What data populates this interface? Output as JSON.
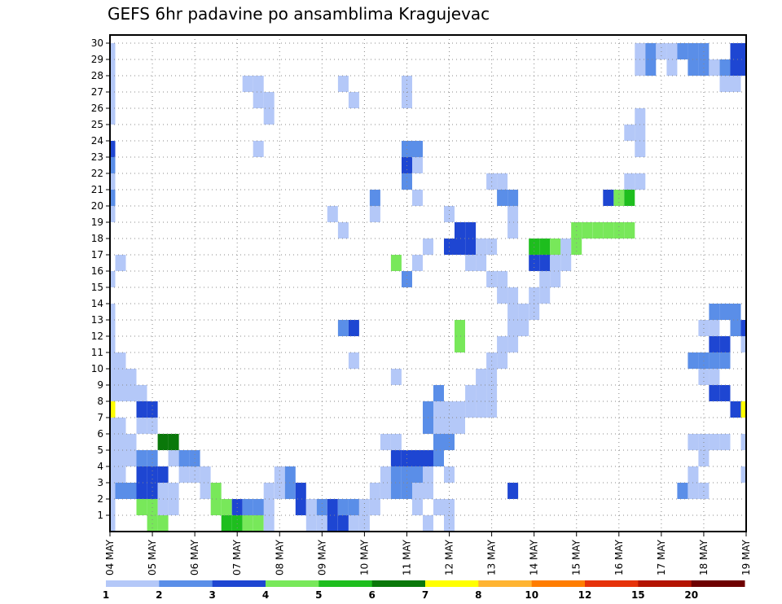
{
  "chart_data": {
    "type": "heatmap",
    "title": "GEFS 6hr padavine po ansamblima Kragujevac",
    "xlabel": "",
    "ylabel": "",
    "x_tick_labels": [
      "04 MAY",
      "05 MAY",
      "06 MAY",
      "07 MAY",
      "08 MAY",
      "09 MAY",
      "10 MAY",
      "11 MAY",
      "12 MAY",
      "13 MAY",
      "14 MAY",
      "15 MAY",
      "16 MAY",
      "17 MAY",
      "18 MAY",
      "19 MAY"
    ],
    "y_tick_labels": [
      "1",
      "2",
      "3",
      "4",
      "5",
      "6",
      "7",
      "8",
      "9",
      "10",
      "11",
      "12",
      "13",
      "14",
      "15",
      "16",
      "17",
      "18",
      "19",
      "20",
      "21",
      "22",
      "23",
      "24",
      "25",
      "26",
      "27",
      "28",
      "29",
      "30"
    ],
    "ylim": [
      0,
      30
    ],
    "time_steps_per_day": 4,
    "grid": true,
    "colorbar": {
      "labels": [
        "1",
        "2",
        "3",
        "4",
        "5",
        "6",
        "7",
        "8",
        "10",
        "12",
        "15",
        "20"
      ],
      "colors": [
        "#b4c8f8",
        "#5a8ee8",
        "#1e46d2",
        "#78e85a",
        "#1ebe1e",
        "#0a780a",
        "#ffff00",
        "#ffb432",
        "#ff7d00",
        "#e6320a",
        "#b41400",
        "#6e0000"
      ]
    },
    "cells": [
      [
        0,
        0,
        1
      ],
      [
        0,
        27,
        1
      ],
      [
        0,
        28,
        1
      ],
      [
        0,
        26,
        1
      ],
      [
        0,
        28,
        2
      ],
      [
        0,
        23,
        3
      ],
      [
        0,
        22,
        2
      ],
      [
        0,
        21,
        1
      ],
      [
        0,
        20,
        2
      ],
      [
        0,
        19,
        1
      ],
      [
        0,
        15,
        1
      ],
      [
        0,
        12,
        1
      ],
      [
        0,
        13,
        1
      ],
      [
        0,
        9,
        1
      ],
      [
        0,
        7,
        1
      ],
      [
        0,
        6,
        1
      ],
      [
        0,
        5,
        2
      ],
      [
        0,
        4,
        1
      ],
      [
        0,
        3,
        1
      ],
      [
        0,
        2,
        1
      ],
      [
        0,
        1,
        1
      ],
      [
        0,
        8,
        1
      ],
      [
        0,
        25,
        1
      ],
      [
        1,
        16,
        1
      ],
      [
        1,
        5,
        2
      ],
      [
        1,
        4,
        1
      ],
      [
        1,
        6,
        1
      ],
      [
        2,
        4,
        1
      ],
      [
        13,
        27,
        1
      ],
      [
        14,
        26,
        1
      ],
      [
        14,
        27,
        1
      ],
      [
        14,
        23,
        1
      ],
      [
        14,
        1,
        1
      ],
      [
        15,
        1,
        1
      ],
      [
        15,
        25,
        1
      ],
      [
        15,
        26,
        1
      ],
      [
        22,
        27,
        1
      ],
      [
        23,
        26,
        1
      ],
      [
        25,
        19,
        1
      ],
      [
        25,
        20,
        2
      ],
      [
        21,
        19,
        1
      ],
      [
        22,
        18,
        1
      ],
      [
        22,
        12,
        2
      ],
      [
        23,
        12,
        3
      ],
      [
        23,
        10,
        1
      ],
      [
        27,
        16,
        4
      ],
      [
        28,
        15,
        2
      ],
      [
        27,
        5,
        1
      ],
      [
        26,
        5,
        1
      ],
      [
        27,
        9,
        1
      ],
      [
        28,
        22,
        2
      ],
      [
        29,
        22,
        1
      ],
      [
        28,
        23,
        2
      ],
      [
        28,
        22,
        3
      ],
      [
        28,
        21,
        2
      ],
      [
        28,
        26,
        1
      ],
      [
        28,
        27,
        1
      ],
      [
        29,
        20,
        1
      ],
      [
        29,
        23,
        2
      ],
      [
        29,
        16,
        1
      ],
      [
        29,
        2,
        1
      ],
      [
        29,
        1,
        1
      ],
      [
        30,
        2,
        1
      ],
      [
        30,
        0,
        1
      ],
      [
        31,
        1,
        1
      ],
      [
        31,
        4,
        1
      ],
      [
        30,
        3,
        1
      ],
      [
        32,
        3,
        1
      ],
      [
        32,
        1,
        1
      ],
      [
        32,
        0,
        1
      ],
      [
        30,
        17,
        1
      ],
      [
        32,
        19,
        1
      ],
      [
        32,
        17,
        3
      ],
      [
        33,
        17,
        3
      ],
      [
        33,
        18,
        3
      ],
      [
        34,
        18,
        3
      ],
      [
        34,
        17,
        3
      ],
      [
        35,
        17,
        1
      ],
      [
        36,
        17,
        1
      ],
      [
        34,
        16,
        1
      ],
      [
        35,
        16,
        1
      ],
      [
        31,
        8,
        2
      ],
      [
        31,
        7,
        1
      ],
      [
        32,
        7,
        1
      ],
      [
        31,
        6,
        1
      ],
      [
        31,
        5,
        1
      ],
      [
        30,
        7,
        2
      ],
      [
        30,
        6,
        2
      ],
      [
        33,
        11,
        4
      ],
      [
        33,
        12,
        4
      ],
      [
        35,
        7,
        1
      ],
      [
        36,
        7,
        1
      ],
      [
        36,
        8,
        1
      ],
      [
        36,
        15,
        1
      ],
      [
        37,
        15,
        1
      ],
      [
        37,
        14,
        1
      ],
      [
        38,
        14,
        1
      ],
      [
        38,
        13,
        1
      ],
      [
        38,
        12,
        1
      ],
      [
        39,
        12,
        1
      ],
      [
        37,
        20,
        2
      ],
      [
        38,
        20,
        2
      ],
      [
        37,
        21,
        1
      ],
      [
        36,
        21,
        1
      ],
      [
        38,
        19,
        1
      ],
      [
        38,
        18,
        1
      ],
      [
        41,
        17,
        5
      ],
      [
        42,
        17,
        4
      ],
      [
        43,
        17,
        4
      ],
      [
        44,
        17,
        4
      ],
      [
        44,
        18,
        4
      ],
      [
        45,
        18,
        4
      ],
      [
        46,
        18,
        4
      ],
      [
        47,
        18,
        4
      ],
      [
        48,
        18,
        4
      ],
      [
        49,
        18,
        4
      ],
      [
        40,
        16,
        3
      ],
      [
        41,
        16,
        3
      ],
      [
        40,
        17,
        5
      ],
      [
        38,
        2,
        3
      ],
      [
        48,
        20,
        4
      ],
      [
        49,
        20,
        5
      ],
      [
        47,
        20,
        3
      ],
      [
        49,
        21,
        1
      ],
      [
        50,
        21,
        1
      ],
      [
        50,
        24,
        1
      ],
      [
        50,
        23,
        1
      ],
      [
        49,
        24,
        1
      ],
      [
        50,
        25,
        1
      ],
      [
        50,
        29,
        1
      ],
      [
        50,
        28,
        1
      ],
      [
        51,
        28,
        2
      ],
      [
        51,
        29,
        2
      ],
      [
        52,
        29,
        1
      ],
      [
        53,
        29,
        1
      ],
      [
        53,
        28,
        1
      ],
      [
        54,
        29,
        2
      ],
      [
        55,
        29,
        2
      ],
      [
        55,
        28,
        2
      ],
      [
        56,
        29,
        2
      ],
      [
        56,
        28,
        2
      ],
      [
        57,
        28,
        1
      ],
      [
        58,
        28,
        2
      ],
      [
        58,
        27,
        1
      ],
      [
        59,
        27,
        1
      ],
      [
        59,
        28,
        3
      ],
      [
        59,
        29,
        3
      ],
      [
        60,
        29,
        3
      ],
      [
        60,
        28,
        3
      ],
      [
        61,
        29,
        1
      ],
      [
        61,
        28,
        1
      ],
      [
        55,
        2,
        1
      ],
      [
        56,
        2,
        1
      ],
      [
        54,
        2,
        2
      ],
      [
        55,
        3,
        1
      ],
      [
        55,
        5,
        1
      ],
      [
        56,
        5,
        1
      ],
      [
        57,
        5,
        1
      ],
      [
        58,
        5,
        1
      ],
      [
        56,
        4,
        1
      ],
      [
        55,
        10,
        2
      ],
      [
        56,
        10,
        2
      ],
      [
        57,
        10,
        2
      ],
      [
        58,
        10,
        2
      ],
      [
        56,
        9,
        1
      ],
      [
        57,
        9,
        1
      ],
      [
        57,
        8,
        3
      ],
      [
        58,
        8,
        3
      ],
      [
        57,
        11,
        3
      ],
      [
        58,
        11,
        3
      ],
      [
        56,
        12,
        1
      ],
      [
        57,
        12,
        1
      ],
      [
        57,
        13,
        2
      ],
      [
        58,
        13,
        2
      ],
      [
        59,
        13,
        2
      ],
      [
        59,
        12,
        2
      ],
      [
        60,
        12,
        3
      ],
      [
        60,
        11,
        1
      ],
      [
        61,
        11,
        1
      ],
      [
        61,
        10,
        1
      ],
      [
        62,
        10,
        1
      ],
      [
        62,
        9,
        1
      ],
      [
        62,
        8,
        1
      ],
      [
        63,
        9,
        1
      ],
      [
        63,
        8,
        1
      ],
      [
        64,
        8,
        1
      ],
      [
        64,
        7,
        3
      ],
      [
        65,
        7,
        3
      ],
      [
        64,
        6,
        1
      ],
      [
        65,
        6,
        1
      ],
      [
        59,
        7,
        3
      ],
      [
        60,
        7,
        7
      ],
      [
        61,
        7,
        7
      ],
      [
        61,
        6,
        1
      ],
      [
        62,
        6,
        1
      ],
      [
        62,
        5,
        1
      ],
      [
        63,
        5,
        1
      ],
      [
        61,
        5,
        1
      ],
      [
        60,
        5,
        1
      ],
      [
        60,
        3,
        1
      ],
      [
        61,
        3,
        1
      ],
      [
        62,
        3,
        1
      ],
      [
        62,
        4,
        1
      ],
      [
        63,
        4,
        1
      ],
      [
        64,
        4,
        2
      ],
      [
        65,
        4,
        2
      ],
      [
        64,
        3,
        3
      ],
      [
        65,
        3,
        3
      ],
      [
        66,
        3,
        3
      ],
      [
        65,
        2,
        3
      ],
      [
        64,
        2,
        3
      ],
      [
        66,
        2,
        1
      ],
      [
        67,
        2,
        1
      ],
      [
        63,
        2,
        2
      ],
      [
        62,
        2,
        2
      ],
      [
        64,
        1,
        4
      ],
      [
        65,
        1,
        4
      ],
      [
        65,
        0,
        4
      ],
      [
        66,
        0,
        4
      ],
      [
        66,
        1,
        1
      ],
      [
        67,
        1,
        1
      ],
      [
        66,
        5,
        6
      ],
      [
        67,
        5,
        6
      ],
      [
        67,
        4,
        1
      ],
      [
        68,
        4,
        2
      ],
      [
        69,
        4,
        2
      ],
      [
        68,
        3,
        1
      ],
      [
        69,
        3,
        1
      ],
      [
        70,
        3,
        1
      ],
      [
        70,
        2,
        1
      ],
      [
        71,
        2,
        4
      ],
      [
        71,
        1,
        4
      ],
      [
        72,
        1,
        4
      ],
      [
        73,
        1,
        3
      ],
      [
        72,
        0,
        5
      ],
      [
        73,
        0,
        5
      ],
      [
        74,
        0,
        4
      ],
      [
        75,
        0,
        4
      ],
      [
        76,
        0,
        1
      ],
      [
        76,
        1,
        1
      ],
      [
        74,
        1,
        2
      ],
      [
        75,
        1,
        2
      ],
      [
        76,
        2,
        1
      ],
      [
        77,
        2,
        1
      ],
      [
        77,
        3,
        1
      ],
      [
        78,
        3,
        2
      ],
      [
        78,
        2,
        2
      ],
      [
        79,
        2,
        3
      ],
      [
        79,
        1,
        3
      ],
      [
        80,
        1,
        1
      ],
      [
        80,
        0,
        1
      ],
      [
        81,
        0,
        1
      ],
      [
        81,
        1,
        2
      ],
      [
        82,
        1,
        3
      ],
      [
        82,
        0,
        3
      ],
      [
        83,
        0,
        3
      ],
      [
        83,
        1,
        2
      ],
      [
        84,
        1,
        2
      ],
      [
        84,
        0,
        1
      ],
      [
        85,
        0,
        1
      ],
      [
        85,
        1,
        1
      ],
      [
        86,
        1,
        1
      ],
      [
        86,
        2,
        1
      ],
      [
        87,
        2,
        1
      ],
      [
        87,
        3,
        1
      ],
      [
        88,
        3,
        2
      ],
      [
        88,
        2,
        2
      ],
      [
        89,
        2,
        2
      ],
      [
        89,
        3,
        2
      ],
      [
        90,
        3,
        2
      ],
      [
        88,
        4,
        3
      ],
      [
        89,
        4,
        3
      ],
      [
        90,
        4,
        3
      ],
      [
        91,
        4,
        3
      ],
      [
        92,
        4,
        2
      ],
      [
        92,
        5,
        2
      ],
      [
        93,
        5,
        2
      ],
      [
        93,
        6,
        1
      ],
      [
        94,
        6,
        1
      ],
      [
        94,
        7,
        1
      ],
      [
        95,
        7,
        1
      ],
      [
        95,
        8,
        1
      ],
      [
        96,
        8,
        1
      ],
      [
        96,
        9,
        1
      ],
      [
        97,
        9,
        1
      ],
      [
        97,
        10,
        1
      ],
      [
        98,
        10,
        1
      ],
      [
        98,
        11,
        1
      ],
      [
        99,
        11,
        1
      ],
      [
        99,
        12,
        1
      ],
      [
        100,
        12,
        1
      ],
      [
        100,
        13,
        1
      ],
      [
        101,
        13,
        1
      ],
      [
        101,
        14,
        1
      ],
      [
        102,
        14,
        1
      ],
      [
        102,
        15,
        1
      ],
      [
        103,
        15,
        1
      ],
      [
        103,
        16,
        1
      ],
      [
        104,
        16,
        1
      ],
      [
        104,
        17,
        1
      ]
    ]
  }
}
